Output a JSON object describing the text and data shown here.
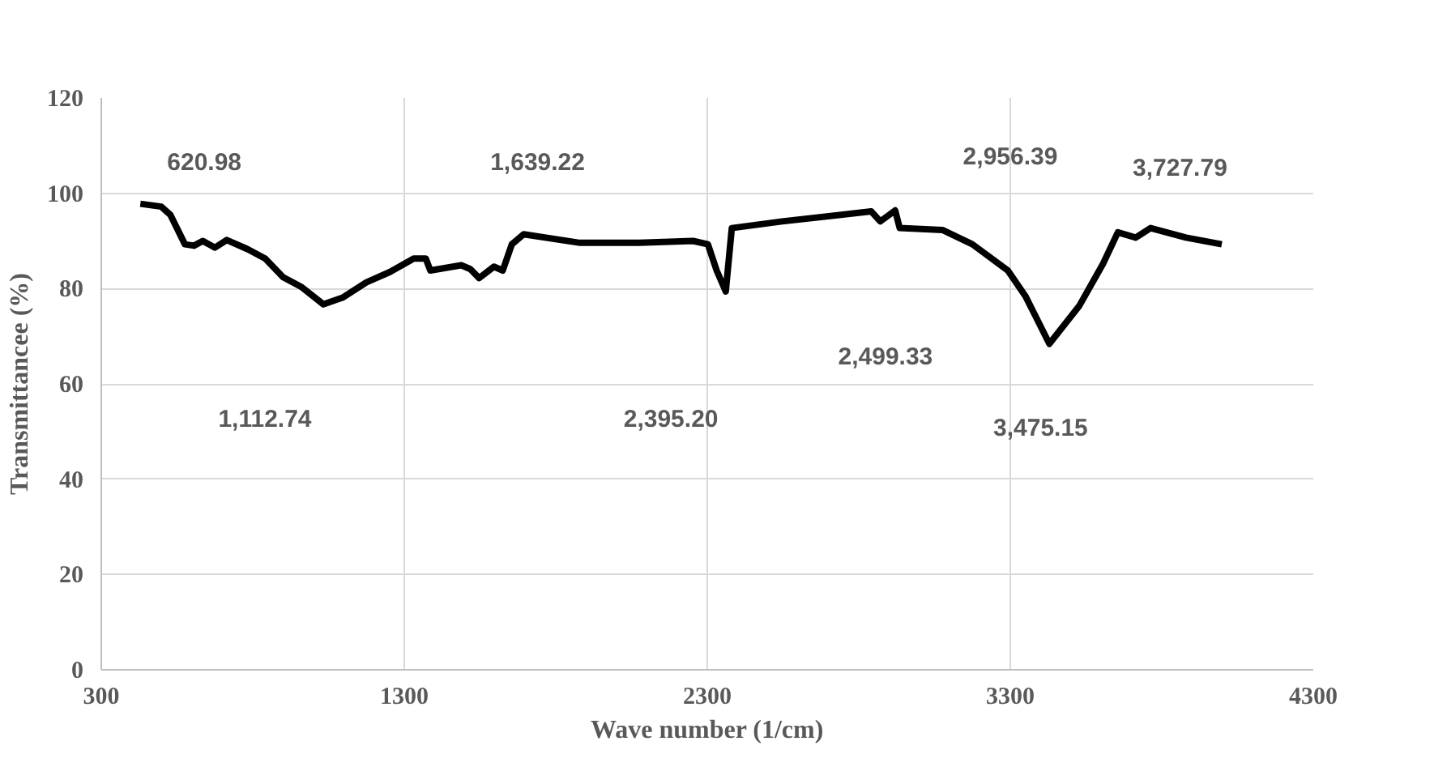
{
  "chart_data": {
    "type": "line",
    "xlabel": "Wave number (1/cm)",
    "ylabel": "Transmittancee (%)",
    "xlim": [
      300,
      4300
    ],
    "xticks": [
      300,
      1300,
      2300,
      3300,
      4300
    ],
    "ylim": [
      0,
      120
    ],
    "yticks": [
      0,
      20,
      40,
      60,
      80,
      100,
      120
    ],
    "grid": true,
    "marker": "none",
    "line_style": "solid",
    "series": [
      {
        "color": "#000000",
        "x": [
          429,
          498,
          528,
          576,
          606,
          635,
          675,
          714,
          782,
          841,
          900,
          959,
          1033,
          1096,
          1175,
          1253,
          1331,
          1371,
          1386,
          1488,
          1518,
          1547,
          1596,
          1625,
          1655,
          1694,
          1880,
          2076,
          2253,
          2302,
          2331,
          2361,
          2381,
          2547,
          2841,
          2871,
          2920,
          2935,
          3076,
          3175,
          3292,
          3351,
          3429,
          3527,
          3606,
          3655,
          3714,
          3763,
          3880,
          3998
        ],
        "values": [
          97.8,
          97.2,
          95.5,
          89.3,
          89,
          90,
          88.6,
          90.2,
          88.3,
          86.3,
          82.4,
          80.4,
          76.7,
          78.1,
          81.3,
          83.5,
          86.3,
          86.3,
          83.8,
          84.9,
          84.1,
          82.2,
          84.6,
          83.8,
          89.3,
          91.4,
          89.6,
          89.6,
          90,
          89.3,
          83.8,
          79.4,
          92.7,
          94.1,
          96.2,
          94.1,
          96.4,
          92.7,
          92.3,
          89.3,
          83.8,
          78.3,
          68.4,
          76.3,
          85.2,
          91.8,
          90.7,
          92.7,
          90.7,
          89.3
        ]
      }
    ],
    "annotations": [
      "620.98",
      "1,639.22",
      "2,956.39",
      "3,727.79",
      "1,112.74",
      "2,395.20",
      "2,499.33",
      "3,475.15"
    ]
  }
}
